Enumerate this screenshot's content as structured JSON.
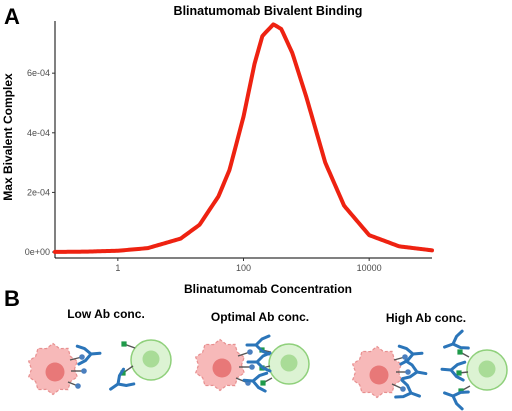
{
  "panel_a_letter": "A",
  "panel_b_letter": "B",
  "chart_data": {
    "type": "line",
    "title": "Blinatumomab Bivalent Binding",
    "xlabel": "Blinatumomab Concentration",
    "ylabel": "Max Bivalent Complex",
    "x_scale": "log10",
    "xlim": [
      0.1,
      100000
    ],
    "ylim": [
      -2e-05,
      0.000775
    ],
    "x_ticks": [
      1,
      100,
      10000
    ],
    "x_tick_labels": [
      "1",
      "100",
      "10000"
    ],
    "y_ticks": [
      0,
      0.0002,
      0.0004,
      0.0006
    ],
    "y_tick_labels": [
      "0e+00",
      "2e-04",
      "4e-04",
      "6e-04"
    ],
    "grid": false,
    "legend": "none",
    "series": [
      {
        "color": "#ee2211",
        "x": [
          0.1,
          0.3,
          1,
          3,
          10,
          20,
          40,
          60,
          100,
          150,
          200,
          300,
          400,
          600,
          1000,
          2000,
          4000,
          10000,
          30000,
          100000
        ],
        "y": [
          4e-07,
          1.3e-06,
          4.3e-06,
          1.31e-05,
          4.51e-05,
          9.16e-05,
          0.000187,
          0.000276,
          0.000454,
          0.000632,
          0.000725,
          0.000764,
          0.000748,
          0.000667,
          0.00052,
          0.0003,
          0.000155,
          5.67e-05,
          1.91e-05,
          5.7e-06
        ]
      }
    ]
  },
  "panel_b": {
    "scenarios": [
      {
        "label": "Low Ab conc."
      },
      {
        "label": "Optimal Ab conc."
      },
      {
        "label": "High Ab conc."
      }
    ],
    "colors": {
      "tumor_cell_fill": "#f7b9b9",
      "tumor_cell_edge": "#e79090",
      "tumor_nucleus": "#e87878",
      "t_cell_fill": "#dcf3d3",
      "t_cell_edge": "#8fd07b",
      "t_nucleus": "#a9dc97",
      "antibody": "#2b75b9",
      "tumor_receptor_tip": "#4a7fbf",
      "t_receptor_tip": "#1f9a4a",
      "receptor_stem": "#555555"
    }
  }
}
